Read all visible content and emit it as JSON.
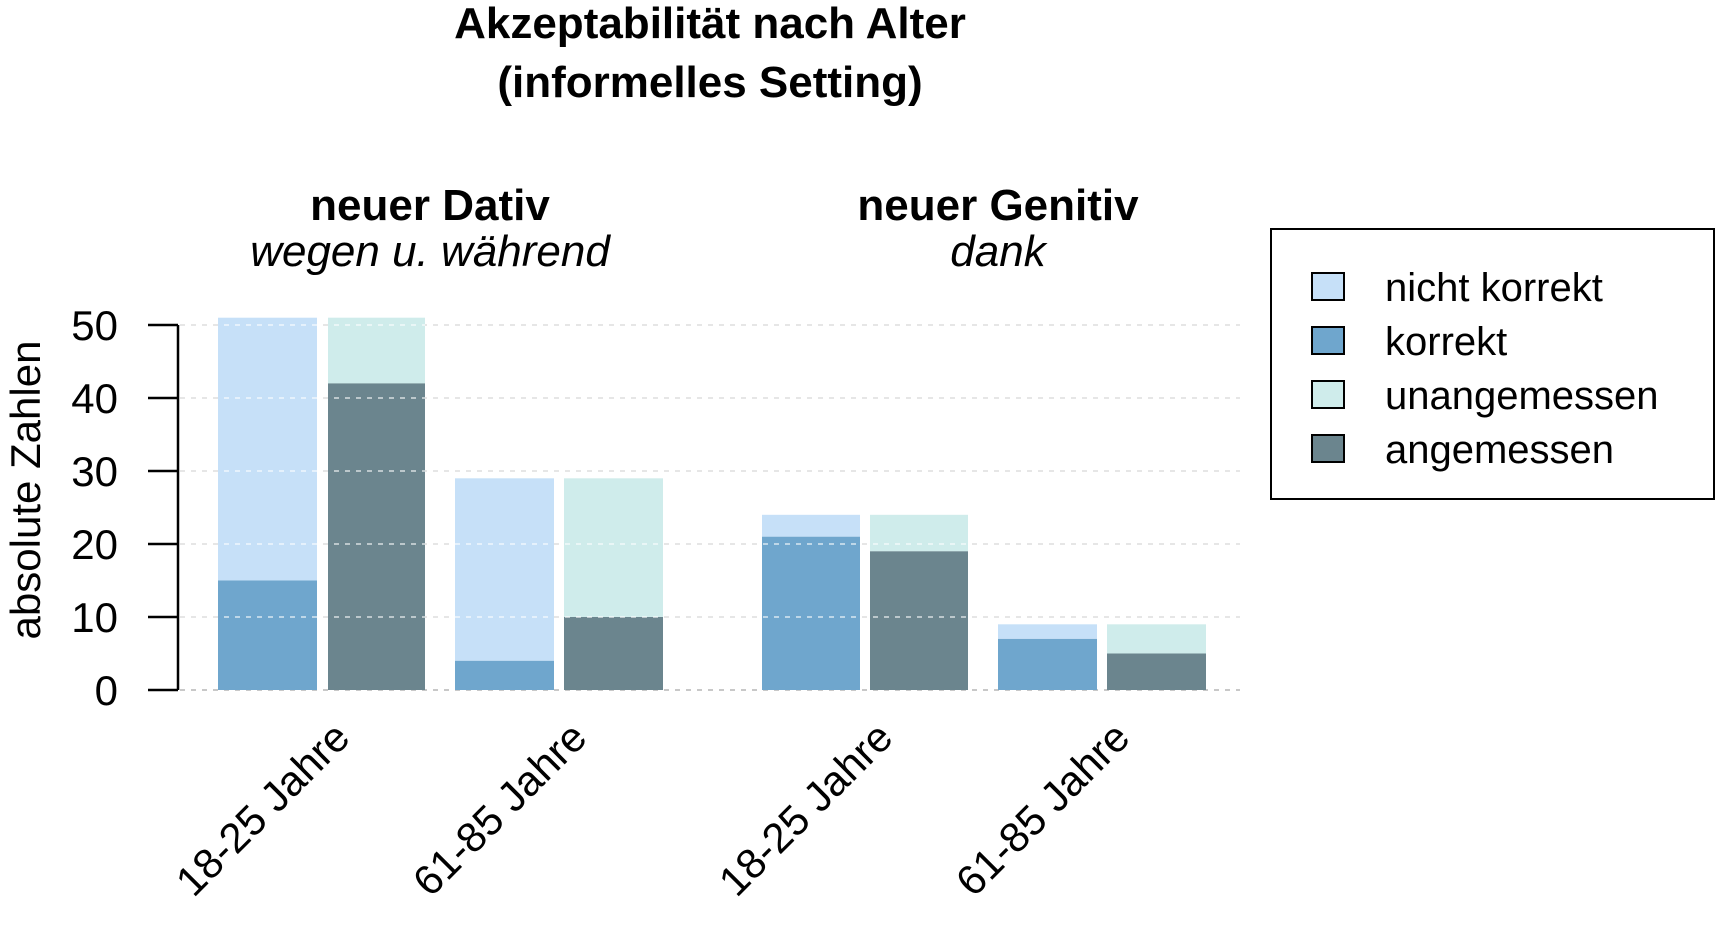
{
  "chart_data": {
    "type": "bar",
    "title_lines": [
      "Akzeptabilität nach Alter",
      "(informelles Setting)"
    ],
    "ylabel": "absolute Zahlen",
    "ylim": [
      0,
      50
    ],
    "yticks": [
      0,
      10,
      20,
      30,
      40,
      50
    ],
    "grid": true,
    "legend_position": "right",
    "legend": [
      {
        "key": "nicht_korrekt",
        "label": "nicht korrekt",
        "color": "#c6e0f8"
      },
      {
        "key": "korrekt",
        "label": "korrekt",
        "color": "#6fa6cd"
      },
      {
        "key": "unangemessen",
        "label": "unangemessen",
        "color": "#cfeceb"
      },
      {
        "key": "angemessen",
        "label": "angemessen",
        "color": "#6b858e"
      }
    ],
    "groups": [
      {
        "title": "neuer Dativ",
        "subtitle": "wegen u. während",
        "categories": [
          {
            "label": "18-25 Jahre",
            "bars": [
              {
                "total": 51,
                "lower": 15,
                "lower_color": "#6fa6cd",
                "upper_color": "#c6e0f8"
              },
              {
                "total": 51,
                "lower": 42,
                "lower_color": "#6b858e",
                "upper_color": "#cfeceb"
              }
            ]
          },
          {
            "label": "61-85 Jahre",
            "bars": [
              {
                "total": 29,
                "lower": 4,
                "lower_color": "#6fa6cd",
                "upper_color": "#c6e0f8"
              },
              {
                "total": 29,
                "lower": 10,
                "lower_color": "#6b858e",
                "upper_color": "#cfeceb"
              }
            ]
          }
        ]
      },
      {
        "title": "neuer Genitiv",
        "subtitle": "dank",
        "categories": [
          {
            "label": "18-25 Jahre",
            "bars": [
              {
                "total": 24,
                "lower": 21,
                "lower_color": "#6fa6cd",
                "upper_color": "#c6e0f8"
              },
              {
                "total": 24,
                "lower": 19,
                "lower_color": "#6b858e",
                "upper_color": "#cfeceb"
              }
            ]
          },
          {
            "label": "61-85 Jahre",
            "bars": [
              {
                "total": 9,
                "lower": 7,
                "lower_color": "#6fa6cd",
                "upper_color": "#c6e0f8"
              },
              {
                "total": 9,
                "lower": 5,
                "lower_color": "#6b858e",
                "upper_color": "#cfeceb"
              }
            ]
          }
        ]
      }
    ]
  }
}
